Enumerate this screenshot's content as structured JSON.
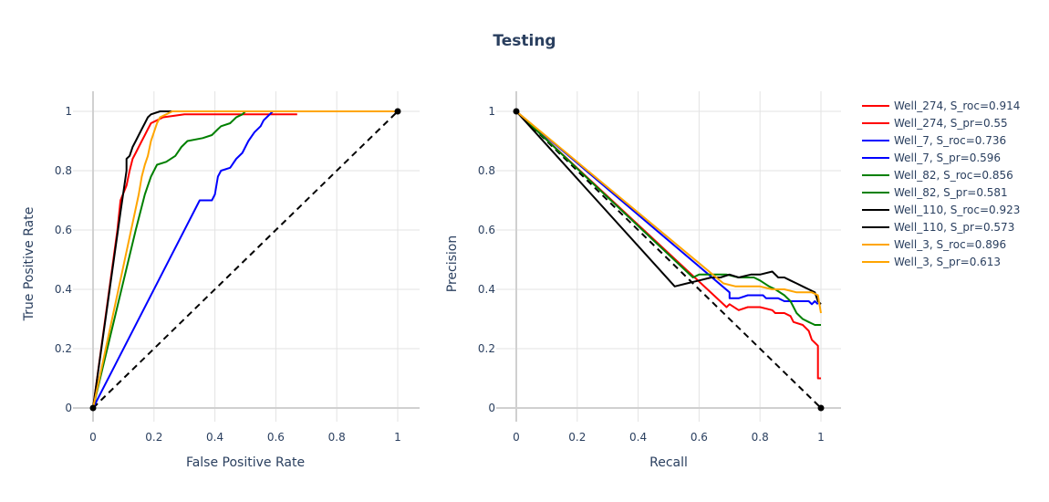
{
  "title": "Testing",
  "colors": {
    "Well_274": "#ff0000",
    "Well_7": "#0000ff",
    "Well_82": "#008000",
    "Well_110": "#000000",
    "Well_3": "#ffa500",
    "grid": "#e3e3e3"
  },
  "legend": [
    {
      "label": "Well_274,   S_roc=0.914",
      "color": "#ff0000"
    },
    {
      "label": "Well_274,   S_pr=0.55",
      "color": "#ff0000"
    },
    {
      "label": "Well_7,   S_roc=0.736",
      "color": "#0000ff"
    },
    {
      "label": "Well_7,   S_pr=0.596",
      "color": "#0000ff"
    },
    {
      "label": "Well_82,   S_roc=0.856",
      "color": "#008000"
    },
    {
      "label": "Well_82,   S_pr=0.581",
      "color": "#008000"
    },
    {
      "label": "Well_110,   S_roc=0.923",
      "color": "#000000"
    },
    {
      "label": "Well_110,   S_pr=0.573",
      "color": "#000000"
    },
    {
      "label": "Well_3,   S_roc=0.896",
      "color": "#ffa500"
    },
    {
      "label": "Well_3,   S_pr=0.613",
      "color": "#ffa500"
    }
  ],
  "chart_data": [
    {
      "type": "line",
      "xlabel": "False Positive Rate",
      "ylabel": "True Positive Rate",
      "xlim": [
        0,
        1
      ],
      "ylim": [
        0,
        1
      ],
      "xticks": [
        "0",
        "0.2",
        "0.4",
        "0.6",
        "0.8",
        "1"
      ],
      "yticks": [
        "0",
        "0.2",
        "0.4",
        "0.6",
        "0.8",
        "1"
      ],
      "grid": true,
      "reference_line": {
        "points": [
          [
            0,
            0
          ],
          [
            1,
            1
          ]
        ],
        "style": "dashed",
        "color": "#000000",
        "endpoints": "markers"
      },
      "series": [
        {
          "name": "Well_274,   S_roc=0.914",
          "color": "#ff0000",
          "points": [
            [
              0,
              0
            ],
            [
              0.08,
              0.6
            ],
            [
              0.09,
              0.7
            ],
            [
              0.11,
              0.75
            ],
            [
              0.12,
              0.8
            ],
            [
              0.13,
              0.84
            ],
            [
              0.14,
              0.86
            ],
            [
              0.15,
              0.88
            ],
            [
              0.16,
              0.9
            ],
            [
              0.17,
              0.92
            ],
            [
              0.18,
              0.94
            ],
            [
              0.19,
              0.96
            ],
            [
              0.21,
              0.97
            ],
            [
              0.23,
              0.98
            ],
            [
              0.3,
              0.99
            ],
            [
              0.5,
              0.99
            ],
            [
              0.67,
              0.99
            ]
          ]
        },
        {
          "name": "Well_7,   S_roc=0.736",
          "color": "#0000ff",
          "points": [
            [
              0,
              0
            ],
            [
              0.35,
              0.7
            ],
            [
              0.39,
              0.7
            ],
            [
              0.4,
              0.72
            ],
            [
              0.41,
              0.78
            ],
            [
              0.42,
              0.8
            ],
            [
              0.45,
              0.81
            ],
            [
              0.47,
              0.84
            ],
            [
              0.49,
              0.86
            ],
            [
              0.5,
              0.88
            ],
            [
              0.51,
              0.9
            ],
            [
              0.53,
              0.93
            ],
            [
              0.55,
              0.95
            ],
            [
              0.56,
              0.97
            ],
            [
              0.57,
              0.98
            ],
            [
              0.58,
              0.99
            ],
            [
              0.59,
              1
            ],
            [
              1,
              1
            ]
          ]
        },
        {
          "name": "Well_82,   S_roc=0.856",
          "color": "#008000",
          "points": [
            [
              0,
              0
            ],
            [
              0.14,
              0.6
            ],
            [
              0.17,
              0.72
            ],
            [
              0.19,
              0.78
            ],
            [
              0.21,
              0.82
            ],
            [
              0.24,
              0.83
            ],
            [
              0.27,
              0.85
            ],
            [
              0.29,
              0.88
            ],
            [
              0.31,
              0.9
            ],
            [
              0.36,
              0.91
            ],
            [
              0.39,
              0.92
            ],
            [
              0.41,
              0.94
            ],
            [
              0.42,
              0.95
            ],
            [
              0.45,
              0.96
            ],
            [
              0.47,
              0.98
            ],
            [
              0.49,
              0.99
            ],
            [
              0.5,
              1
            ],
            [
              1,
              1
            ]
          ]
        },
        {
          "name": "Well_110,   S_roc=0.923",
          "color": "#000000",
          "points": [
            [
              0,
              0
            ],
            [
              0.09,
              0.66
            ],
            [
              0.1,
              0.73
            ],
            [
              0.11,
              0.8
            ],
            [
              0.11,
              0.84
            ],
            [
              0.12,
              0.85
            ],
            [
              0.13,
              0.88
            ],
            [
              0.14,
              0.9
            ],
            [
              0.15,
              0.92
            ],
            [
              0.16,
              0.94
            ],
            [
              0.17,
              0.96
            ],
            [
              0.18,
              0.98
            ],
            [
              0.19,
              0.99
            ],
            [
              0.22,
              1
            ],
            [
              1,
              1
            ]
          ]
        },
        {
          "name": "Well_3,   S_roc=0.896",
          "color": "#ffa500",
          "points": [
            [
              0,
              0
            ],
            [
              0.15,
              0.72
            ],
            [
              0.16,
              0.78
            ],
            [
              0.17,
              0.82
            ],
            [
              0.18,
              0.85
            ],
            [
              0.19,
              0.9
            ],
            [
              0.2,
              0.93
            ],
            [
              0.21,
              0.96
            ],
            [
              0.22,
              0.98
            ],
            [
              0.24,
              0.99
            ],
            [
              0.26,
              1
            ],
            [
              1,
              1
            ]
          ]
        }
      ]
    },
    {
      "type": "line",
      "xlabel": "Recall",
      "ylabel": "Precision",
      "xlim": [
        0,
        1
      ],
      "ylim": [
        0,
        1
      ],
      "xticks": [
        "0",
        "0.2",
        "0.4",
        "0.6",
        "0.8",
        "1"
      ],
      "yticks": [
        "0",
        "0.2",
        "0.4",
        "0.6",
        "0.8",
        "1"
      ],
      "grid": true,
      "reference_line": {
        "points": [
          [
            0,
            1
          ],
          [
            1,
            0
          ]
        ],
        "style": "dashed",
        "color": "#000000",
        "endpoints": "markers"
      },
      "series": [
        {
          "name": "Well_274,   S_pr=0.55",
          "color": "#ff0000",
          "points": [
            [
              0,
              1
            ],
            [
              0.69,
              0.34
            ],
            [
              0.7,
              0.35
            ],
            [
              0.73,
              0.33
            ],
            [
              0.76,
              0.34
            ],
            [
              0.8,
              0.34
            ],
            [
              0.84,
              0.33
            ],
            [
              0.85,
              0.32
            ],
            [
              0.88,
              0.32
            ],
            [
              0.9,
              0.31
            ],
            [
              0.91,
              0.29
            ],
            [
              0.94,
              0.28
            ],
            [
              0.96,
              0.26
            ],
            [
              0.97,
              0.23
            ],
            [
              0.98,
              0.22
            ],
            [
              0.99,
              0.21
            ],
            [
              0.99,
              0.1
            ],
            [
              1,
              0.1
            ]
          ]
        },
        {
          "name": "Well_7,   S_pr=0.596",
          "color": "#0000ff",
          "points": [
            [
              0,
              1
            ],
            [
              0.7,
              0.39
            ],
            [
              0.7,
              0.37
            ],
            [
              0.73,
              0.37
            ],
            [
              0.76,
              0.38
            ],
            [
              0.8,
              0.38
            ],
            [
              0.81,
              0.38
            ],
            [
              0.82,
              0.37
            ],
            [
              0.86,
              0.37
            ],
            [
              0.88,
              0.36
            ],
            [
              0.92,
              0.36
            ],
            [
              0.96,
              0.36
            ],
            [
              0.97,
              0.35
            ],
            [
              0.98,
              0.36
            ],
            [
              0.99,
              0.35
            ]
          ]
        },
        {
          "name": "Well_82,   S_pr=0.581",
          "color": "#008000",
          "points": [
            [
              0,
              1
            ],
            [
              0.58,
              0.44
            ],
            [
              0.6,
              0.45
            ],
            [
              0.65,
              0.45
            ],
            [
              0.69,
              0.45
            ],
            [
              0.73,
              0.44
            ],
            [
              0.78,
              0.44
            ],
            [
              0.8,
              0.43
            ],
            [
              0.83,
              0.41
            ],
            [
              0.85,
              0.4
            ],
            [
              0.88,
              0.38
            ],
            [
              0.9,
              0.36
            ],
            [
              0.92,
              0.32
            ],
            [
              0.94,
              0.3
            ],
            [
              0.96,
              0.29
            ],
            [
              0.98,
              0.28
            ],
            [
              1,
              0.28
            ]
          ]
        },
        {
          "name": "Well_110,   S_pr=0.573",
          "color": "#000000",
          "points": [
            [
              0,
              1
            ],
            [
              0.52,
              0.41
            ],
            [
              0.56,
              0.42
            ],
            [
              0.6,
              0.43
            ],
            [
              0.64,
              0.44
            ],
            [
              0.67,
              0.44
            ],
            [
              0.7,
              0.45
            ],
            [
              0.73,
              0.44
            ],
            [
              0.77,
              0.45
            ],
            [
              0.8,
              0.45
            ],
            [
              0.84,
              0.46
            ],
            [
              0.86,
              0.44
            ],
            [
              0.88,
              0.44
            ],
            [
              0.9,
              0.43
            ],
            [
              0.92,
              0.42
            ],
            [
              0.94,
              0.41
            ],
            [
              0.96,
              0.4
            ],
            [
              0.98,
              0.39
            ],
            [
              0.99,
              0.36
            ],
            [
              1,
              0.35
            ]
          ]
        },
        {
          "name": "Well_3,   S_pr=0.613",
          "color": "#ffa500",
          "points": [
            [
              0,
              1
            ],
            [
              0.68,
              0.42
            ],
            [
              0.72,
              0.41
            ],
            [
              0.76,
              0.41
            ],
            [
              0.8,
              0.41
            ],
            [
              0.84,
              0.4
            ],
            [
              0.88,
              0.4
            ],
            [
              0.92,
              0.39
            ],
            [
              0.95,
              0.39
            ],
            [
              0.97,
              0.39
            ],
            [
              0.99,
              0.38
            ],
            [
              1,
              0.32
            ]
          ]
        }
      ]
    }
  ]
}
